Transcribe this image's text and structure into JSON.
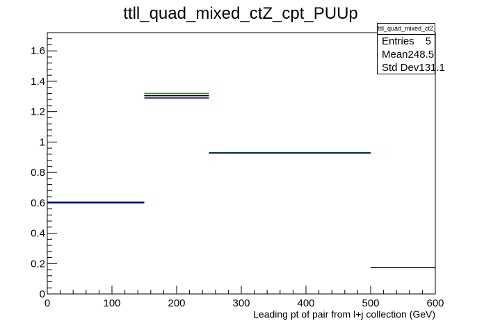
{
  "chart_data": {
    "type": "step",
    "title": "ttll_quad_mixed_ctZ_cpt_PUUp",
    "xlabel": "Leading pt of pair from l+j collection (GeV)",
    "ylabel": "",
    "xlim": [
      0,
      600
    ],
    "ylim": [
      0,
      1.72
    ],
    "xticks": [
      0,
      100,
      200,
      300,
      400,
      500,
      600
    ],
    "yticks": [
      0,
      0.2,
      0.4,
      0.6,
      0.8,
      1,
      1.2,
      1.4,
      1.6
    ],
    "xtick_labels": [
      "0",
      "100",
      "200",
      "300",
      "400",
      "500",
      "600"
    ],
    "ytick_labels": [
      "0",
      "0.2",
      "0.4",
      "0.6",
      "0.8",
      "1",
      "1.2",
      "1.4",
      "1.6"
    ],
    "grid": false,
    "series": [
      {
        "color": "#00aa00",
        "bins": [
          {
            "xlow": 0,
            "xhigh": 150,
            "y": 0.605
          },
          {
            "xlow": 150,
            "xhigh": 250,
            "y": 1.32
          },
          {
            "xlow": 250,
            "xhigh": 500,
            "y": 0.93
          },
          {
            "xlow": 500,
            "xhigh": 600,
            "y": 0.175
          }
        ]
      },
      {
        "color": "#000000",
        "bins": [
          {
            "xlow": 0,
            "xhigh": 150,
            "y": 0.6
          },
          {
            "xlow": 150,
            "xhigh": 250,
            "y": 1.305
          },
          {
            "xlow": 250,
            "xhigh": 500,
            "y": 0.928
          },
          {
            "xlow": 500,
            "xhigh": 600,
            "y": 0.175
          }
        ]
      },
      {
        "color": "#000080",
        "bins": [
          {
            "xlow": 0,
            "xhigh": 150,
            "y": 0.603
          },
          {
            "xlow": 150,
            "xhigh": 250,
            "y": 1.29
          },
          {
            "xlow": 250,
            "xhigh": 500,
            "y": 0.928
          },
          {
            "xlow": 500,
            "xhigh": 600,
            "y": 0.175
          }
        ]
      }
    ],
    "legend_position": "top-right"
  },
  "stats": {
    "title": "ttll_quad_mixed_ctZ_cpt_PUUp",
    "rows": [
      {
        "label": "Entries",
        "value": "5"
      },
      {
        "label": "Mean",
        "value": "248.5"
      },
      {
        "label": "Std Dev",
        "value": "131.1"
      }
    ]
  }
}
